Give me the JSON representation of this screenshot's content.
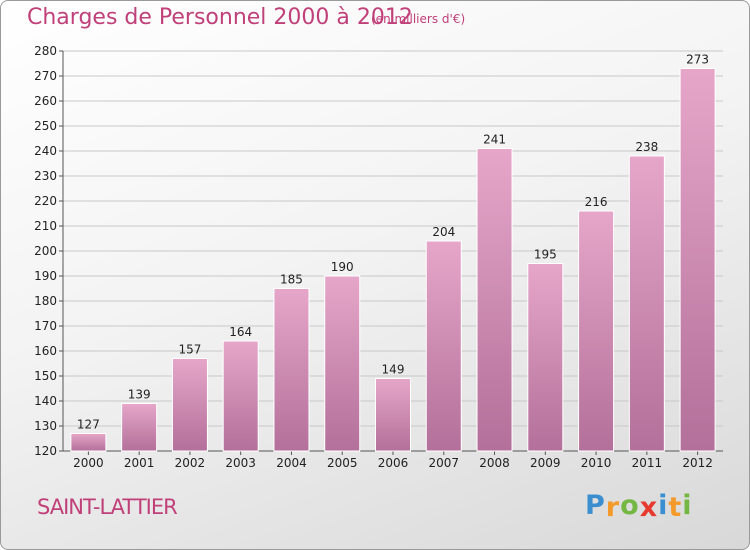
{
  "title": "Charges de Personnel 2000 à 2012",
  "subtitle": "(en milliers d'€)",
  "town": "SAINT-LATTIER",
  "logo": {
    "text": "Proxiti",
    "letters": [
      "P",
      "r",
      "o",
      "x",
      "i",
      "t",
      "i"
    ],
    "colors": [
      "#3b8fd0",
      "#f39a2b",
      "#74b843",
      "#e63a2f",
      "#3b8fd0",
      "#f39a2b",
      "#74b843"
    ]
  },
  "colors": {
    "bar_top": "#e6a6c9",
    "bar_bottom": "#b3709a",
    "title": "#c0407a",
    "gridline": "#c8c8c8"
  },
  "chart_data": {
    "type": "bar",
    "categories": [
      "2000",
      "2001",
      "2002",
      "2003",
      "2004",
      "2005",
      "2006",
      "2007",
      "2008",
      "2009",
      "2010",
      "2011",
      "2012"
    ],
    "values": [
      127,
      139,
      157,
      164,
      185,
      190,
      149,
      204,
      241,
      195,
      216,
      238,
      273
    ],
    "ylim": [
      120,
      280
    ],
    "yticks": [
      120,
      130,
      140,
      150,
      160,
      170,
      180,
      190,
      200,
      210,
      220,
      230,
      240,
      250,
      260,
      270,
      280
    ],
    "grid": true
  }
}
